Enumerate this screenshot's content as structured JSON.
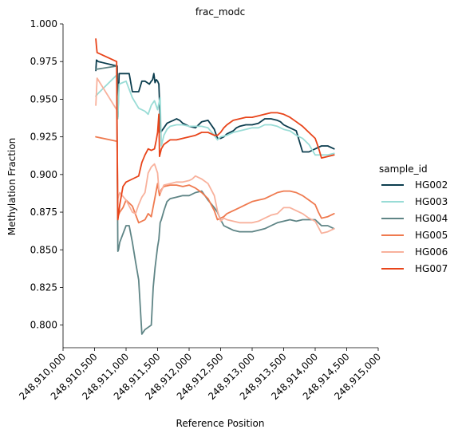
{
  "chart_data": {
    "type": "line",
    "title": "frac_modc",
    "xlabel": "Reference Position",
    "ylabel": "Methylation Fraction",
    "xlim": [
      248910000,
      248915000
    ],
    "ylim": [
      0.785,
      1.0
    ],
    "x_ticks": [
      248910000,
      248910500,
      248911000,
      248911500,
      248912000,
      248912500,
      248913000,
      248913500,
      248914000,
      248914500,
      248915000
    ],
    "x_tick_labels": [
      "248,910,000",
      "248,910,500",
      "248,911,000",
      "248,911,500",
      "248,912,000",
      "248,912,500",
      "248,913,000",
      "248,913,500",
      "248,914,000",
      "248,914,500",
      "248,915,000"
    ],
    "y_ticks": [
      0.8,
      0.825,
      0.85,
      0.875,
      0.9,
      0.925,
      0.95,
      0.975,
      1.0
    ],
    "y_tick_labels": [
      "0.800",
      "0.825",
      "0.850",
      "0.875",
      "0.900",
      "0.925",
      "0.950",
      "0.975",
      "1.000"
    ],
    "grid": false,
    "legend": {
      "title": "sample_id",
      "position": "right"
    },
    "series": [
      {
        "name": "HG002",
        "color": "#0b3d4e",
        "x": [
          248910520,
          248910530,
          248910560,
          248910860,
          248910870,
          248910890,
          248911050,
          248911100,
          248911200,
          248911250,
          248911300,
          248911370,
          248911400,
          248911420,
          248911440,
          248911460,
          248911480,
          248911500,
          248911520,
          248911540,
          248911550,
          248911600,
          248911650,
          248911700,
          248911750,
          248911800,
          248911850,
          248911900,
          248911950,
          248912000,
          248912100,
          248912200,
          248912300,
          248912400,
          248912450,
          248912500,
          248912550,
          248912600,
          248912650,
          248912700,
          248912750,
          248912800,
          248912900,
          248913000,
          248913100,
          248913200,
          248913300,
          248913400,
          248913450,
          248913500,
          248913550,
          248913600,
          248913700,
          248913800,
          248913900,
          248914000,
          248914050,
          248914100,
          248914200,
          248914300
        ],
        "y": [
          0.969,
          0.976,
          0.975,
          0.972,
          0.938,
          0.967,
          0.967,
          0.955,
          0.955,
          0.962,
          0.962,
          0.96,
          0.962,
          0.963,
          0.967,
          0.961,
          0.963,
          0.962,
          0.96,
          0.937,
          0.928,
          0.931,
          0.934,
          0.935,
          0.936,
          0.937,
          0.936,
          0.934,
          0.933,
          0.932,
          0.931,
          0.935,
          0.936,
          0.93,
          0.924,
          0.924,
          0.925,
          0.927,
          0.928,
          0.929,
          0.931,
          0.932,
          0.933,
          0.933,
          0.934,
          0.937,
          0.937,
          0.936,
          0.935,
          0.933,
          0.932,
          0.931,
          0.929,
          0.915,
          0.915,
          0.917,
          0.918,
          0.919,
          0.919,
          0.917
        ]
      },
      {
        "name": "HG003",
        "color": "#99dcd6",
        "x": [
          248910520,
          248910560,
          248910850,
          248910870,
          248910890,
          248911000,
          248911100,
          248911200,
          248911300,
          248911350,
          248911400,
          248911450,
          248911500,
          248911540,
          248911560,
          248911600,
          248911650,
          248911700,
          248911800,
          248911900,
          248912000,
          248912100,
          248912200,
          248912300,
          248912400,
          248912450,
          248912500,
          248912600,
          248912700,
          248912800,
          248912900,
          248913000,
          248913100,
          248913200,
          248913300,
          248913400,
          248913500,
          248913600,
          248913700,
          248913800,
          248913900,
          248914000,
          248914050,
          248914100,
          248914200,
          248914300
        ],
        "y": [
          0.952,
          0.954,
          0.966,
          0.937,
          0.96,
          0.962,
          0.951,
          0.944,
          0.942,
          0.94,
          0.946,
          0.949,
          0.943,
          0.951,
          0.919,
          0.926,
          0.93,
          0.932,
          0.933,
          0.933,
          0.932,
          0.932,
          0.932,
          0.931,
          0.926,
          0.923,
          0.925,
          0.926,
          0.928,
          0.929,
          0.93,
          0.931,
          0.931,
          0.933,
          0.933,
          0.932,
          0.93,
          0.929,
          0.926,
          0.924,
          0.92,
          0.913,
          0.913,
          0.913,
          0.913,
          0.914
        ]
      },
      {
        "name": "HG004",
        "color": "#5f8586",
        "x": [
          248910520,
          248910540,
          248910850,
          248910870,
          248910880,
          248910900,
          248911000,
          248911050,
          248911100,
          248911150,
          248911200,
          248911250,
          248911300,
          248911400,
          248911430,
          248911460,
          248911480,
          248911500,
          248911520,
          248911540,
          248911560,
          248911600,
          248911650,
          248911700,
          248911800,
          248911900,
          248912000,
          248912100,
          248912200,
          248912300,
          248912400,
          248912450,
          248912500,
          248912550,
          248912600,
          248912650,
          248912700,
          248912800,
          248912900,
          248913000,
          248913100,
          248913200,
          248913300,
          248913400,
          248913500,
          248913600,
          248913700,
          248913800,
          248913900,
          248914000,
          248914050,
          248914100,
          248914200,
          248914300
        ],
        "y": [
          0.97,
          0.97,
          0.972,
          0.849,
          0.85,
          0.855,
          0.866,
          0.866,
          0.855,
          0.842,
          0.83,
          0.794,
          0.797,
          0.8,
          0.825,
          0.838,
          0.845,
          0.852,
          0.857,
          0.868,
          0.87,
          0.876,
          0.882,
          0.884,
          0.885,
          0.886,
          0.886,
          0.888,
          0.889,
          0.883,
          0.878,
          0.875,
          0.87,
          0.866,
          0.865,
          0.864,
          0.863,
          0.862,
          0.862,
          0.862,
          0.863,
          0.864,
          0.866,
          0.868,
          0.869,
          0.87,
          0.869,
          0.87,
          0.87,
          0.87,
          0.868,
          0.866,
          0.866,
          0.864
        ]
      },
      {
        "name": "HG005",
        "color": "#ef7a4f",
        "x": [
          248910520,
          248910860,
          248910870,
          248910900,
          248910950,
          248911000,
          248911100,
          248911200,
          248911300,
          248911350,
          248911400,
          248911450,
          248911500,
          248911530,
          248911560,
          248911600,
          248911700,
          248911800,
          248911900,
          248912000,
          248912100,
          248912200,
          248912300,
          248912400,
          248912450,
          248912500,
          248912550,
          248912600,
          248912700,
          248912800,
          248912900,
          248913000,
          248913100,
          248913200,
          248913300,
          248913400,
          248913500,
          248913600,
          248913700,
          248913800,
          248913900,
          248914000,
          248914050,
          248914100,
          248914200,
          248914300
        ],
        "y": [
          0.925,
          0.922,
          0.872,
          0.875,
          0.878,
          0.883,
          0.879,
          0.868,
          0.87,
          0.874,
          0.872,
          0.883,
          0.894,
          0.886,
          0.89,
          0.892,
          0.893,
          0.893,
          0.892,
          0.893,
          0.891,
          0.888,
          0.884,
          0.876,
          0.87,
          0.871,
          0.872,
          0.874,
          0.876,
          0.878,
          0.88,
          0.882,
          0.883,
          0.884,
          0.886,
          0.888,
          0.889,
          0.889,
          0.888,
          0.886,
          0.883,
          0.88,
          0.875,
          0.871,
          0.872,
          0.874
        ]
      },
      {
        "name": "HG006",
        "color": "#f8b19c",
        "x": [
          248910520,
          248910540,
          248910850,
          248910870,
          248910900,
          248911000,
          248911100,
          248911150,
          248911200,
          248911250,
          248911300,
          248911350,
          248911400,
          248911450,
          248911500,
          248911520,
          248911550,
          248911600,
          248911700,
          248911800,
          248911900,
          248912000,
          248912050,
          248912100,
          248912150,
          248912200,
          248912300,
          248912400,
          248912450,
          248912500,
          248912550,
          248912600,
          248912700,
          248912800,
          248912900,
          248913000,
          248913100,
          248913200,
          248913300,
          248913400,
          248913500,
          248913600,
          248913700,
          248913800,
          248913900,
          248914000,
          248914050,
          248914100,
          248914200,
          248914300
        ],
        "y": [
          0.946,
          0.964,
          0.943,
          0.884,
          0.888,
          0.883,
          0.875,
          0.874,
          0.88,
          0.885,
          0.888,
          0.901,
          0.905,
          0.907,
          0.901,
          0.89,
          0.888,
          0.893,
          0.894,
          0.895,
          0.895,
          0.896,
          0.897,
          0.899,
          0.898,
          0.897,
          0.894,
          0.886,
          0.876,
          0.869,
          0.871,
          0.87,
          0.869,
          0.868,
          0.868,
          0.868,
          0.869,
          0.871,
          0.873,
          0.874,
          0.878,
          0.878,
          0.876,
          0.874,
          0.871,
          0.869,
          0.865,
          0.861,
          0.862,
          0.864
        ]
      },
      {
        "name": "HG007",
        "color": "#e8441a",
        "x": [
          248910520,
          248910530,
          248910540,
          248910850,
          248910860,
          248910870,
          248910880,
          248910900,
          248910950,
          248911000,
          248911100,
          248911200,
          248911250,
          248911300,
          248911350,
          248911400,
          248911450,
          248911480,
          248911500,
          248911520,
          248911530,
          248911560,
          248911600,
          248911700,
          248911800,
          248911900,
          248912000,
          248912100,
          248912200,
          248912300,
          248912400,
          248912450,
          248912500,
          248912550,
          248912600,
          248912700,
          248912800,
          248912900,
          248913000,
          248913100,
          248913200,
          248913300,
          248913400,
          248913500,
          248913600,
          248913700,
          248913800,
          248913900,
          248914000,
          248914050,
          248914100,
          248914200,
          248914300
        ],
        "y": [
          0.99,
          0.985,
          0.981,
          0.975,
          0.914,
          0.87,
          0.873,
          0.88,
          0.892,
          0.895,
          0.897,
          0.899,
          0.908,
          0.913,
          0.917,
          0.916,
          0.917,
          0.923,
          0.928,
          0.94,
          0.912,
          0.917,
          0.92,
          0.923,
          0.923,
          0.924,
          0.925,
          0.926,
          0.928,
          0.928,
          0.926,
          0.926,
          0.928,
          0.931,
          0.933,
          0.936,
          0.937,
          0.938,
          0.938,
          0.939,
          0.94,
          0.941,
          0.941,
          0.94,
          0.938,
          0.935,
          0.932,
          0.928,
          0.924,
          0.918,
          0.911,
          0.912,
          0.913
        ]
      }
    ]
  }
}
